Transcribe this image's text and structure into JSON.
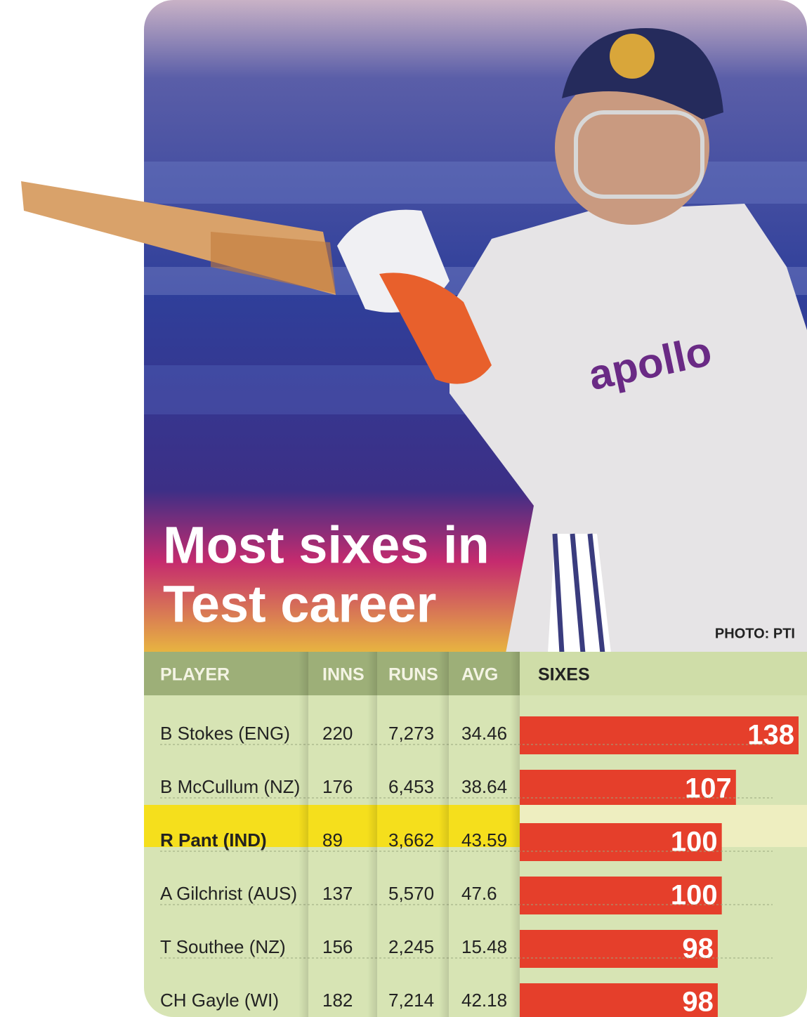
{
  "chart_data": {
    "type": "bar",
    "title_lines": [
      "Most sixes in",
      "Test career"
    ],
    "credit": "PHOTO: PTI",
    "columns": [
      "PLAYER",
      "INNS",
      "RUNS",
      "AVG",
      "SIXES"
    ],
    "categories": [
      "B Stokes (ENG)",
      "B McCullum (NZ)",
      "R Pant (IND)",
      "A Gilchrist (AUS)",
      "T Southee (NZ)",
      "CH Gayle (WI)"
    ],
    "inns": [
      220,
      176,
      89,
      137,
      156,
      182
    ],
    "runs": [
      "7,273",
      "6,453",
      "3,662",
      "5,570",
      "2,245",
      "7,214"
    ],
    "avg": [
      34.46,
      38.64,
      43.59,
      47.6,
      15.48,
      42.18
    ],
    "values": [
      138,
      107,
      100,
      100,
      98,
      98
    ],
    "color": "#e53f2b",
    "highlight_row": 2
  }
}
